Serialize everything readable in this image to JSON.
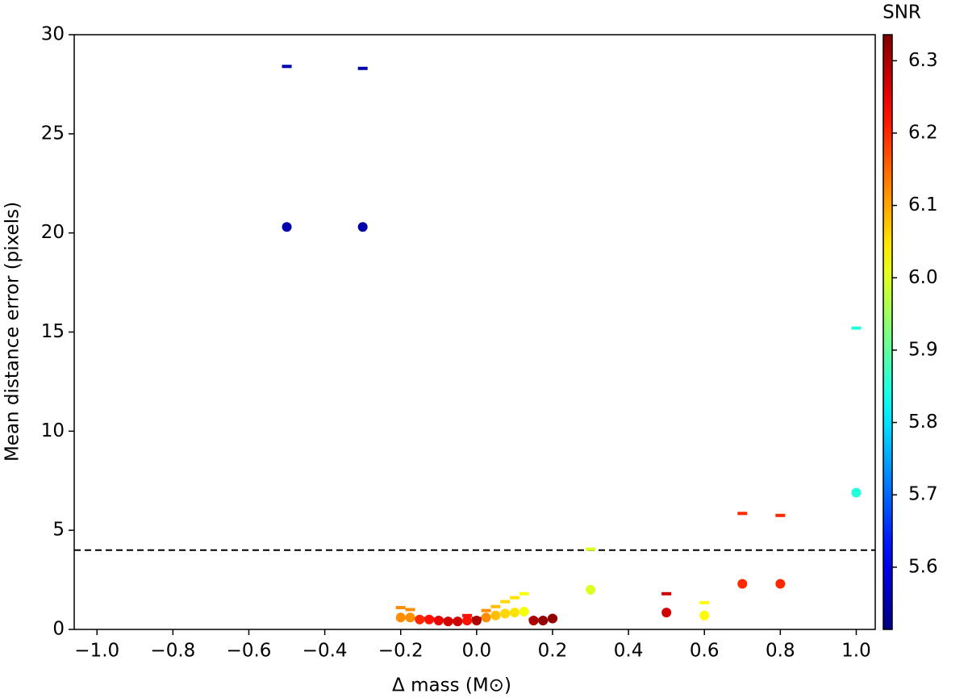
{
  "chart_data": {
    "type": "scatter",
    "xlabel": "Δ mass (M⊙)",
    "ylabel": "Mean distance error (pixels)",
    "colorbar_label": "SNR",
    "colormap": "jet",
    "xlim": [
      -1.06,
      1.05
    ],
    "ylim": [
      0,
      30
    ],
    "clim": [
      5.514,
      6.336
    ],
    "xticks": [
      {
        "value": -1.0,
        "label": "−1.0"
      },
      {
        "value": -0.8,
        "label": "−0.8"
      },
      {
        "value": -0.6,
        "label": "−0.6"
      },
      {
        "value": -0.4,
        "label": "−0.4"
      },
      {
        "value": -0.2,
        "label": "−0.2"
      },
      {
        "value": 0,
        "label": "0.0"
      },
      0.2,
      0.4,
      0.6,
      0.8,
      {
        "value": 1.0,
        "label": "1.0"
      }
    ],
    "yticks": [
      0,
      5,
      10,
      15,
      20,
      25,
      30
    ],
    "cticks": [
      5.6,
      5.7,
      5.8,
      5.9,
      {
        "value": 6.0,
        "label": "6.0"
      },
      6.1,
      6.2,
      6.3
    ],
    "threshold": 4,
    "series": [
      {
        "marker": "dash",
        "x": [
          -0.5,
          -0.3,
          -0.2,
          -0.175,
          -0.15,
          -0.125,
          -0.1,
          -0.075,
          -0.05,
          -0.025,
          0.0,
          0.025,
          0.05,
          0.075,
          0.1,
          0.125,
          0.15,
          0.175,
          0.2,
          0.3,
          0.5,
          0.6,
          0.7,
          0.8,
          1.0
        ],
        "values": [
          28.4,
          28.3,
          1.1,
          1.0,
          0.55,
          0.55,
          0.5,
          0.45,
          0.4,
          0.7,
          0.55,
          0.95,
          1.15,
          1.4,
          1.6,
          1.8,
          0.5,
          0.45,
          0.55,
          4.05,
          1.8,
          1.35,
          5.85,
          5.75,
          15.2
        ],
        "snr": [
          5.55,
          5.55,
          6.12,
          6.12,
          6.2,
          6.22,
          6.25,
          6.27,
          6.27,
          6.22,
          6.3,
          6.12,
          6.08,
          6.06,
          6.05,
          6.02,
          6.3,
          6.32,
          6.32,
          6.0,
          6.27,
          6.03,
          6.2,
          6.2,
          5.85
        ]
      },
      {
        "marker": "circle",
        "x": [
          -0.5,
          -0.3,
          -0.2,
          -0.175,
          -0.15,
          -0.125,
          -0.1,
          -0.075,
          -0.05,
          -0.025,
          0.0,
          0.025,
          0.05,
          0.075,
          0.1,
          0.125,
          0.15,
          0.175,
          0.2,
          0.3,
          0.5,
          0.6,
          0.7,
          0.8,
          1.0
        ],
        "values": [
          20.3,
          20.3,
          0.6,
          0.6,
          0.5,
          0.5,
          0.45,
          0.4,
          0.4,
          0.45,
          0.45,
          0.6,
          0.7,
          0.8,
          0.85,
          0.9,
          0.45,
          0.45,
          0.55,
          2.0,
          0.85,
          0.7,
          2.3,
          2.3,
          6.9
        ],
        "snr": [
          5.55,
          5.55,
          6.12,
          6.12,
          6.2,
          6.22,
          6.25,
          6.27,
          6.27,
          6.22,
          6.3,
          6.12,
          6.08,
          6.06,
          6.05,
          6.02,
          6.3,
          6.32,
          6.32,
          6.0,
          6.27,
          6.03,
          6.2,
          6.2,
          5.85
        ]
      }
    ]
  }
}
